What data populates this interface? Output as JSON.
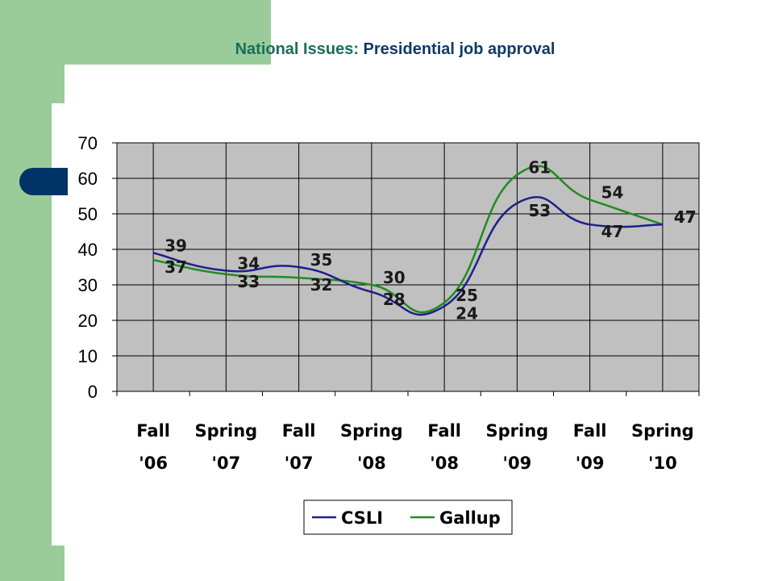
{
  "header": {
    "title_part1": "National Issues:",
    "title_part2": "Presidential job approval"
  },
  "colors": {
    "background_green": "#99cc99",
    "accent_navy": "#003366",
    "plot_area": "#c0c0c0",
    "csli": "#1f1f8c",
    "gallup": "#1f8c1f"
  },
  "chart_data": {
    "type": "line",
    "title": "National Issues: Presidential job approval",
    "categories": [
      "Fall '06",
      "Spring '07",
      "Fall '07",
      "Spring '08",
      "Fall '08",
      "Spring '09",
      "Fall '09",
      "Spring '10"
    ],
    "category_lines": [
      [
        "Fall",
        "'06"
      ],
      [
        "Spring",
        "'07"
      ],
      [
        "Fall",
        "'07"
      ],
      [
        "Spring",
        "'08"
      ],
      [
        "Fall",
        "'08"
      ],
      [
        "Spring",
        "'09"
      ],
      [
        "Fall",
        "'09"
      ],
      [
        "Spring",
        "'10"
      ]
    ],
    "series": [
      {
        "name": "CSLI",
        "color": "#1f1f8c",
        "values": [
          39,
          34,
          35,
          28,
          24,
          53,
          47,
          47
        ]
      },
      {
        "name": "Gallup",
        "color": "#1f8c1f",
        "values": [
          37,
          33,
          32,
          30,
          25,
          61,
          54,
          47
        ]
      }
    ],
    "ylim": [
      0,
      70
    ],
    "yticks": [
      0,
      10,
      20,
      30,
      40,
      50,
      60,
      70
    ],
    "grid": true,
    "legend": "bottom",
    "smooth": true
  }
}
